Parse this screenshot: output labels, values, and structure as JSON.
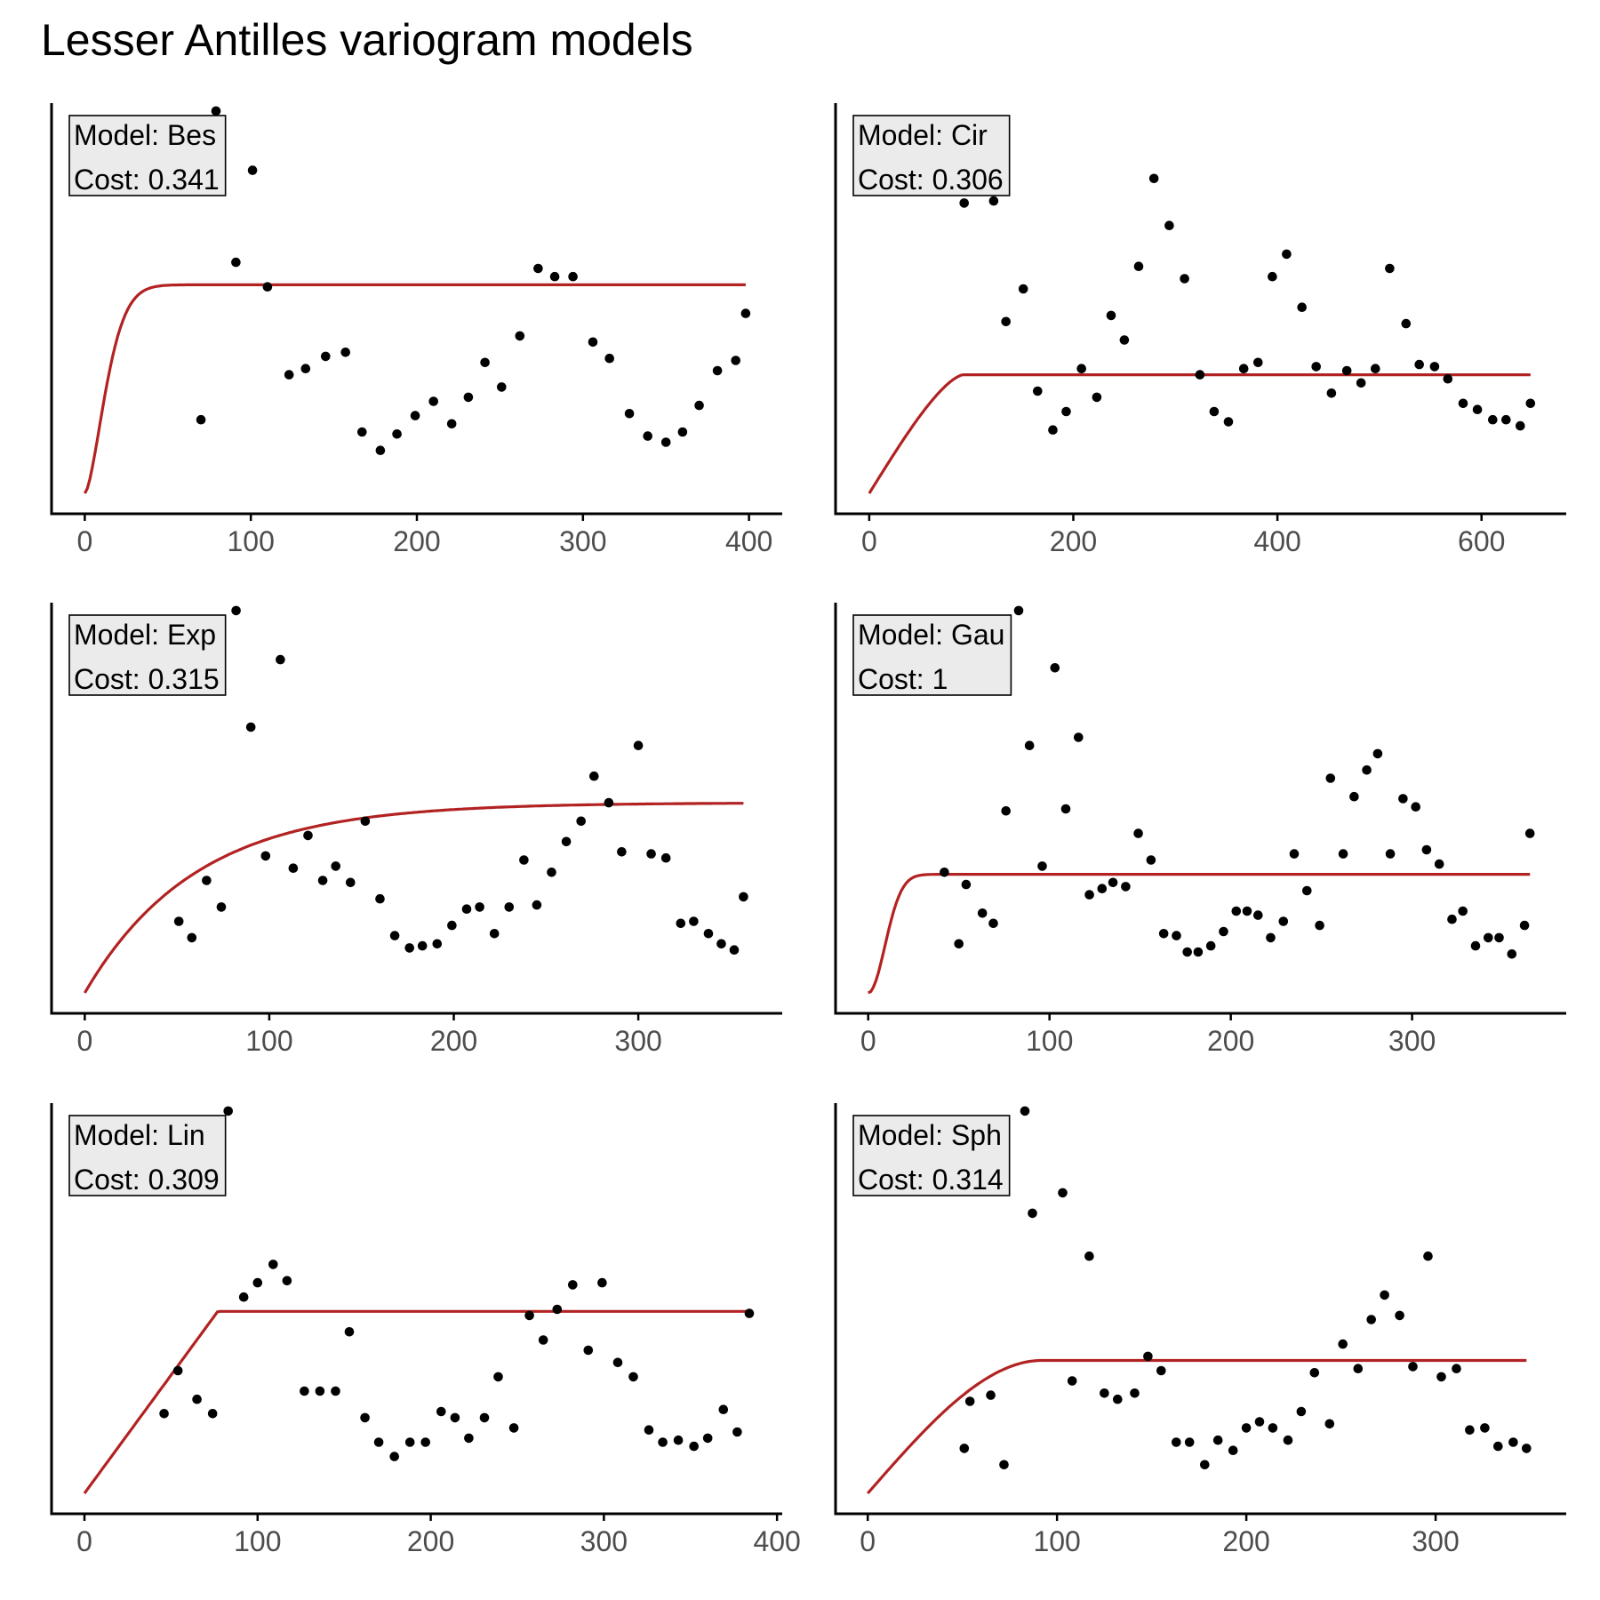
{
  "title": "Lesser Antilles variogram models",
  "colors": {
    "curve": "#b22222",
    "point": "#000000",
    "label_bg": "#ebebeb",
    "axis": "#000000",
    "tick_text": "#4d4d4d"
  },
  "chart_data": [
    {
      "type": "scatter",
      "model": "Model: Bes",
      "cost": "Cost: 0.341",
      "xlim": [
        -20,
        420
      ],
      "ylim": [
        0,
        1
      ],
      "xticks": [
        0,
        100,
        200,
        300,
        400
      ],
      "curve": {
        "kind": "bessel",
        "nugget": 0.05,
        "sill": 0.51,
        "range": 12
      },
      "points": [
        [
          79,
          0.985
        ],
        [
          70,
          0.23
        ],
        [
          101,
          0.84
        ],
        [
          91,
          0.615
        ],
        [
          110,
          0.555
        ],
        [
          123,
          0.34
        ],
        [
          133,
          0.355
        ],
        [
          145,
          0.385
        ],
        [
          157,
          0.395
        ],
        [
          167,
          0.2
        ],
        [
          178,
          0.155
        ],
        [
          188,
          0.195
        ],
        [
          199,
          0.24
        ],
        [
          210,
          0.275
        ],
        [
          221,
          0.22
        ],
        [
          231,
          0.285
        ],
        [
          241,
          0.37
        ],
        [
          251,
          0.31
        ],
        [
          262,
          0.435
        ],
        [
          273,
          0.6
        ],
        [
          283,
          0.58
        ],
        [
          294,
          0.58
        ],
        [
          306,
          0.42
        ],
        [
          316,
          0.38
        ],
        [
          328,
          0.245
        ],
        [
          339,
          0.19
        ],
        [
          350,
          0.175
        ],
        [
          360,
          0.2
        ],
        [
          370,
          0.265
        ],
        [
          381,
          0.35
        ],
        [
          392,
          0.375
        ],
        [
          398,
          0.49
        ]
      ]
    },
    {
      "type": "scatter",
      "model": "Model: Cir",
      "cost": "Cost: 0.306",
      "xlim": [
        -33,
        683
      ],
      "ylim": [
        0,
        1
      ],
      "xticks": [
        0,
        200,
        400,
        600
      ],
      "curve": {
        "kind": "circular",
        "nugget": 0.05,
        "sill": 0.29,
        "range": 92
      },
      "points": [
        [
          93,
          0.76
        ],
        [
          122,
          0.765
        ],
        [
          134,
          0.47
        ],
        [
          151,
          0.55
        ],
        [
          165,
          0.3
        ],
        [
          180,
          0.205
        ],
        [
          193,
          0.25
        ],
        [
          208,
          0.355
        ],
        [
          223,
          0.285
        ],
        [
          237,
          0.485
        ],
        [
          250,
          0.425
        ],
        [
          264,
          0.605
        ],
        [
          279,
          0.82
        ],
        [
          294,
          0.705
        ],
        [
          309,
          0.575
        ],
        [
          324,
          0.34
        ],
        [
          338,
          0.25
        ],
        [
          352,
          0.225
        ],
        [
          367,
          0.355
        ],
        [
          381,
          0.37
        ],
        [
          395,
          0.58
        ],
        [
          409,
          0.635
        ],
        [
          424,
          0.505
        ],
        [
          438,
          0.36
        ],
        [
          453,
          0.295
        ],
        [
          468,
          0.35
        ],
        [
          482,
          0.32
        ],
        [
          496,
          0.355
        ],
        [
          510,
          0.6
        ],
        [
          526,
          0.465
        ],
        [
          539,
          0.365
        ],
        [
          554,
          0.36
        ],
        [
          567,
          0.33
        ],
        [
          582,
          0.27
        ],
        [
          596,
          0.255
        ],
        [
          611,
          0.23
        ],
        [
          624,
          0.23
        ],
        [
          638,
          0.215
        ],
        [
          648,
          0.27
        ]
      ]
    },
    {
      "type": "scatter",
      "model": "Model: Exp",
      "cost": "Cost: 0.315",
      "xlim": [
        -18,
        378
      ],
      "ylim": [
        0,
        1
      ],
      "xticks": [
        0,
        100,
        200,
        300
      ],
      "curve": {
        "kind": "exponential",
        "nugget": 0.05,
        "sill": 0.465,
        "range": 60
      },
      "points": [
        [
          82,
          0.985
        ],
        [
          106,
          0.865
        ],
        [
          90,
          0.7
        ],
        [
          51,
          0.225
        ],
        [
          58,
          0.185
        ],
        [
          66,
          0.325
        ],
        [
          74,
          0.26
        ],
        [
          98,
          0.385
        ],
        [
          113,
          0.355
        ],
        [
          121,
          0.435
        ],
        [
          129,
          0.325
        ],
        [
          136,
          0.36
        ],
        [
          144,
          0.32
        ],
        [
          152,
          0.47
        ],
        [
          160,
          0.28
        ],
        [
          168,
          0.19
        ],
        [
          176,
          0.16
        ],
        [
          183,
          0.165
        ],
        [
          191,
          0.17
        ],
        [
          199,
          0.215
        ],
        [
          207,
          0.255
        ],
        [
          214,
          0.26
        ],
        [
          222,
          0.195
        ],
        [
          230,
          0.26
        ],
        [
          238,
          0.375
        ],
        [
          245,
          0.265
        ],
        [
          253,
          0.345
        ],
        [
          261,
          0.42
        ],
        [
          269,
          0.47
        ],
        [
          276,
          0.58
        ],
        [
          284,
          0.515
        ],
        [
          291,
          0.395
        ],
        [
          300,
          0.655
        ],
        [
          307,
          0.39
        ],
        [
          315,
          0.38
        ],
        [
          323,
          0.22
        ],
        [
          330,
          0.225
        ],
        [
          338,
          0.195
        ],
        [
          345,
          0.17
        ],
        [
          352,
          0.155
        ],
        [
          357,
          0.285
        ]
      ]
    },
    {
      "type": "scatter",
      "model": "Model: Gau",
      "cost": "Cost: 1",
      "xlim": [
        -18,
        385
      ],
      "ylim": [
        0,
        1
      ],
      "xticks": [
        0,
        100,
        200,
        300
      ],
      "curve": {
        "kind": "gaussian",
        "nugget": 0.05,
        "sill": 0.29,
        "range": 13
      },
      "points": [
        [
          83,
          0.985
        ],
        [
          103,
          0.845
        ],
        [
          42,
          0.345
        ],
        [
          50,
          0.17
        ],
        [
          54,
          0.315
        ],
        [
          63,
          0.245
        ],
        [
          69,
          0.22
        ],
        [
          76,
          0.495
        ],
        [
          89,
          0.655
        ],
        [
          96,
          0.36
        ],
        [
          109,
          0.5
        ],
        [
          116,
          0.675
        ],
        [
          122,
          0.29
        ],
        [
          129,
          0.305
        ],
        [
          135,
          0.32
        ],
        [
          142,
          0.31
        ],
        [
          149,
          0.44
        ],
        [
          156,
          0.375
        ],
        [
          163,
          0.195
        ],
        [
          170,
          0.19
        ],
        [
          176,
          0.15
        ],
        [
          182,
          0.15
        ],
        [
          189,
          0.165
        ],
        [
          196,
          0.2
        ],
        [
          203,
          0.25
        ],
        [
          209,
          0.25
        ],
        [
          215,
          0.24
        ],
        [
          222,
          0.185
        ],
        [
          229,
          0.225
        ],
        [
          235,
          0.39
        ],
        [
          242,
          0.3
        ],
        [
          249,
          0.215
        ],
        [
          255,
          0.575
        ],
        [
          262,
          0.39
        ],
        [
          268,
          0.53
        ],
        [
          275,
          0.595
        ],
        [
          281,
          0.635
        ],
        [
          288,
          0.39
        ],
        [
          295,
          0.525
        ],
        [
          302,
          0.505
        ],
        [
          308,
          0.4
        ],
        [
          315,
          0.365
        ],
        [
          322,
          0.23
        ],
        [
          328,
          0.25
        ],
        [
          335,
          0.165
        ],
        [
          342,
          0.185
        ],
        [
          348,
          0.185
        ],
        [
          355,
          0.145
        ],
        [
          362,
          0.215
        ],
        [
          365,
          0.44
        ]
      ]
    },
    {
      "type": "scatter",
      "model": "Model: Lin",
      "cost": "Cost: 0.309",
      "xlim": [
        -19,
        403
      ],
      "ylim": [
        0,
        1
      ],
      "xticks": [
        0,
        100,
        200,
        300,
        400
      ],
      "curve": {
        "kind": "linear",
        "nugget": 0.05,
        "sill": 0.445,
        "range": 77
      },
      "points": [
        [
          83,
          0.985
        ],
        [
          46,
          0.245
        ],
        [
          54,
          0.35
        ],
        [
          65,
          0.28
        ],
        [
          74,
          0.245
        ],
        [
          92,
          0.53
        ],
        [
          100,
          0.565
        ],
        [
          109,
          0.61
        ],
        [
          117,
          0.57
        ],
        [
          127,
          0.3
        ],
        [
          136,
          0.3
        ],
        [
          145,
          0.3
        ],
        [
          153,
          0.445
        ],
        [
          162,
          0.235
        ],
        [
          170,
          0.175
        ],
        [
          179,
          0.14
        ],
        [
          188,
          0.175
        ],
        [
          197,
          0.175
        ],
        [
          206,
          0.25
        ],
        [
          214,
          0.235
        ],
        [
          222,
          0.185
        ],
        [
          231,
          0.235
        ],
        [
          239,
          0.335
        ],
        [
          248,
          0.21
        ],
        [
          257,
          0.485
        ],
        [
          265,
          0.425
        ],
        [
          273,
          0.5
        ],
        [
          282,
          0.56
        ],
        [
          291,
          0.4
        ],
        [
          299,
          0.565
        ],
        [
          308,
          0.37
        ],
        [
          317,
          0.335
        ],
        [
          326,
          0.205
        ],
        [
          334,
          0.175
        ],
        [
          343,
          0.18
        ],
        [
          352,
          0.165
        ],
        [
          360,
          0.185
        ],
        [
          369,
          0.255
        ],
        [
          377,
          0.2
        ],
        [
          384,
          0.49
        ]
      ]
    },
    {
      "type": "scatter",
      "model": "Model: Sph",
      "cost": "Cost: 0.314",
      "xlim": [
        -17,
        369
      ],
      "ylim": [
        0,
        1
      ],
      "xticks": [
        0,
        100,
        200,
        300
      ],
      "curve": {
        "kind": "spherical",
        "nugget": 0.05,
        "sill": 0.325,
        "range": 92
      },
      "points": [
        [
          83,
          0.985
        ],
        [
          51,
          0.16
        ],
        [
          54,
          0.275
        ],
        [
          65,
          0.29
        ],
        [
          72,
          0.12
        ],
        [
          87,
          0.735
        ],
        [
          103,
          0.785
        ],
        [
          108,
          0.325
        ],
        [
          117,
          0.63
        ],
        [
          125,
          0.295
        ],
        [
          132,
          0.28
        ],
        [
          141,
          0.295
        ],
        [
          148,
          0.385
        ],
        [
          155,
          0.35
        ],
        [
          163,
          0.175
        ],
        [
          170,
          0.175
        ],
        [
          178,
          0.12
        ],
        [
          185,
          0.18
        ],
        [
          193,
          0.155
        ],
        [
          200,
          0.21
        ],
        [
          207,
          0.225
        ],
        [
          214,
          0.21
        ],
        [
          222,
          0.18
        ],
        [
          229,
          0.25
        ],
        [
          236,
          0.345
        ],
        [
          244,
          0.22
        ],
        [
          251,
          0.415
        ],
        [
          259,
          0.355
        ],
        [
          266,
          0.475
        ],
        [
          273,
          0.535
        ],
        [
          281,
          0.485
        ],
        [
          288,
          0.36
        ],
        [
          296,
          0.63
        ],
        [
          303,
          0.335
        ],
        [
          311,
          0.355
        ],
        [
          318,
          0.205
        ],
        [
          326,
          0.21
        ],
        [
          333,
          0.165
        ],
        [
          341,
          0.175
        ],
        [
          348,
          0.16
        ]
      ]
    }
  ]
}
